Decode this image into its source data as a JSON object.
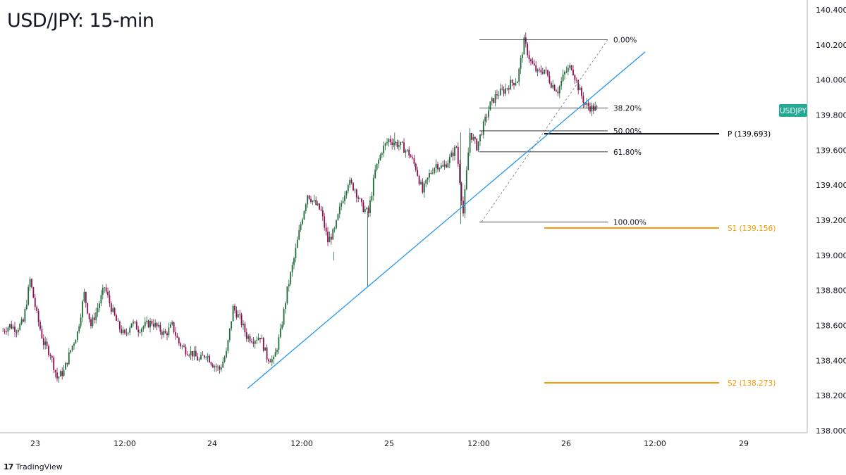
{
  "title": "USD/JPY: 15-min",
  "brand": {
    "logo_icon": "tradingview-logo-icon",
    "name": "TradingView"
  },
  "colors": {
    "up": "#26a69a",
    "up_dark": "#1f6b3a",
    "down": "#880e4f",
    "trendline": "#2196f3",
    "support": "#ff9800",
    "pivot": "#000000",
    "symbol_tag": "#22ab94"
  },
  "symbol_tag": "USDJPY",
  "chart_data": {
    "type": "candlestick",
    "title": "USD/JPY: 15-min",
    "y_ticks": [
      "140.400",
      "140.200",
      "140.000",
      "139.800",
      "139.600",
      "139.400",
      "139.200",
      "139.000",
      "138.800",
      "138.600",
      "138.400",
      "138.200",
      "138.000"
    ],
    "ylim": [
      138.0,
      140.4
    ],
    "x_ticks": [
      "23",
      "12:00",
      "24",
      "12:00",
      "25",
      "12:00",
      "26",
      "12:00",
      "29"
    ],
    "series_close_path": [
      [
        0,
        138.57
      ],
      [
        4,
        138.6
      ],
      [
        8,
        138.58
      ],
      [
        12,
        138.62
      ],
      [
        16,
        138.86
      ],
      [
        20,
        138.66
      ],
      [
        24,
        138.5
      ],
      [
        28,
        138.44
      ],
      [
        32,
        138.3
      ],
      [
        36,
        138.34
      ],
      [
        40,
        138.46
      ],
      [
        44,
        138.56
      ],
      [
        48,
        138.78
      ],
      [
        52,
        138.6
      ],
      [
        56,
        138.7
      ],
      [
        60,
        138.82
      ],
      [
        64,
        138.7
      ],
      [
        68,
        138.6
      ],
      [
        72,
        138.54
      ],
      [
        76,
        138.62
      ],
      [
        80,
        138.58
      ],
      [
        84,
        138.6
      ],
      [
        88,
        138.62
      ],
      [
        92,
        138.58
      ],
      [
        96,
        138.55
      ],
      [
        100,
        138.6
      ],
      [
        104,
        138.5
      ],
      [
        108,
        138.46
      ],
      [
        112,
        138.44
      ],
      [
        116,
        138.4
      ],
      [
        120,
        138.44
      ],
      [
        124,
        138.38
      ],
      [
        128,
        138.35
      ],
      [
        132,
        138.44
      ],
      [
        136,
        138.7
      ],
      [
        140,
        138.64
      ],
      [
        144,
        138.54
      ],
      [
        148,
        138.52
      ],
      [
        152,
        138.54
      ],
      [
        156,
        138.42
      ],
      [
        160,
        138.4
      ],
      [
        164,
        138.56
      ],
      [
        168,
        138.8
      ],
      [
        172,
        138.98
      ],
      [
        176,
        139.18
      ],
      [
        180,
        139.35
      ],
      [
        184,
        139.3
      ],
      [
        188,
        139.25
      ],
      [
        192,
        139.08
      ],
      [
        196,
        139.14
      ],
      [
        200,
        139.3
      ],
      [
        204,
        139.42
      ],
      [
        208,
        139.38
      ],
      [
        212,
        139.28
      ],
      [
        216,
        139.24
      ],
      [
        220,
        139.48
      ],
      [
        224,
        139.6
      ],
      [
        228,
        139.66
      ],
      [
        232,
        139.64
      ],
      [
        236,
        139.62
      ],
      [
        240,
        139.58
      ],
      [
        244,
        139.5
      ],
      [
        248,
        139.36
      ],
      [
        252,
        139.46
      ],
      [
        256,
        139.52
      ],
      [
        260,
        139.5
      ],
      [
        264,
        139.55
      ],
      [
        268,
        139.62
      ],
      [
        272,
        139.24
      ],
      [
        276,
        139.7
      ],
      [
        280,
        139.62
      ],
      [
        284,
        139.74
      ],
      [
        288,
        139.86
      ],
      [
        292,
        139.92
      ],
      [
        296,
        139.94
      ],
      [
        300,
        139.98
      ],
      [
        304,
        140.0
      ],
      [
        308,
        140.22
      ],
      [
        312,
        140.1
      ],
      [
        316,
        140.04
      ],
      [
        320,
        140.06
      ],
      [
        324,
        139.98
      ],
      [
        328,
        139.94
      ],
      [
        332,
        140.04
      ],
      [
        336,
        140.08
      ],
      [
        340,
        139.96
      ],
      [
        344,
        139.86
      ],
      [
        348,
        139.84
      ],
      [
        352,
        139.83
      ]
    ],
    "fibonacci_levels": [
      {
        "label": "0.00%",
        "price": 140.23
      },
      {
        "label": "38.20%",
        "price": 139.84
      },
      {
        "label": "50.00%",
        "price": 139.71
      },
      {
        "label": "61.80%",
        "price": 139.59
      },
      {
        "label": "100.00%",
        "price": 139.19
      }
    ],
    "levels": [
      {
        "label": "P (139.693)",
        "price": 139.693,
        "kind": "pivot"
      },
      {
        "label": "S1 (139.156)",
        "price": 139.156,
        "kind": "support"
      },
      {
        "label": "S2 (138.273)",
        "price": 138.273,
        "kind": "support"
      }
    ],
    "trendline": {
      "from": [
        145,
        138.24
      ],
      "to": [
        380,
        140.16
      ]
    }
  }
}
